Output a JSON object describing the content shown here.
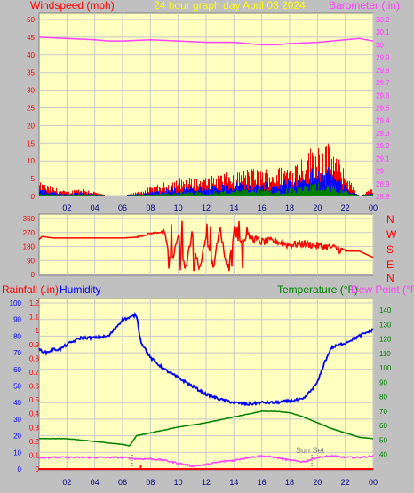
{
  "header": {
    "title": "24 hour graph day   April 03 2024",
    "left_label": "Windspeed (mph)",
    "right_label": "Barometer (.in)"
  },
  "compass": {
    "letters": [
      "N",
      "W",
      "S",
      "E",
      "N"
    ]
  },
  "bottom_header": {
    "rainfall": "Rainfall (.in)",
    "humidity": "Humidity",
    "temperature": "Temperature (°F)",
    "dewpoint": "Dew Point (°F)"
  },
  "annotation": "Sun Set",
  "colors": {
    "background": "#c0c0c0",
    "plot": "#ffffc0",
    "windspeed": "#ff0000",
    "gust_avg": "#0000ff",
    "wind_low": "#008000",
    "barometer": "#ff40ff",
    "humidity": "#0000ff",
    "temperature": "#008000",
    "dewpoint": "#ff40ff",
    "rain": "#ff0000",
    "title": "#ffff00"
  },
  "chart_data": [
    {
      "type": "line",
      "name": "wind-barometer",
      "x_ticks": [
        "02",
        "04",
        "06",
        "08",
        "10",
        "12",
        "14",
        "16",
        "18",
        "20",
        "22",
        "00"
      ],
      "y_left_ticks": [
        "0",
        "5",
        "10",
        "15",
        "20",
        "25",
        "30",
        "35",
        "40",
        "45",
        "50"
      ],
      "y_left_range": [
        0,
        50
      ],
      "y_right_ticks": [
        "28.8",
        "28.9",
        "29",
        "29.1",
        "29.2",
        "29.3",
        "29.4",
        "29.5",
        "29.6",
        "29.7",
        "29.8",
        "29.9",
        "30",
        "30.1",
        "30.2"
      ],
      "y_right_range": [
        28.8,
        30.2
      ],
      "barometer": {
        "x": [
          0,
          2,
          4,
          5,
          6,
          8,
          10,
          12,
          14,
          15,
          16,
          17,
          18,
          20,
          22,
          23,
          24
        ],
        "y": [
          30.06,
          30.05,
          30.04,
          30.03,
          30.03,
          30.04,
          30.03,
          30.02,
          30.02,
          30.01,
          30.0,
          30.0,
          30.01,
          30.02,
          30.04,
          30.05,
          30.03
        ]
      },
      "windspeed_envelope": {
        "x": [
          0,
          1,
          2,
          3,
          4,
          5,
          6,
          7,
          8,
          9,
          10,
          11,
          12,
          13,
          14,
          15,
          16,
          17,
          18,
          19,
          20,
          21,
          22,
          23,
          24
        ],
        "y": [
          3,
          2,
          1,
          2,
          1,
          0,
          0,
          1,
          2,
          3,
          4,
          4,
          4,
          5,
          5,
          6,
          6,
          6,
          7,
          9,
          12,
          11,
          5,
          0,
          2
        ]
      }
    },
    {
      "type": "line",
      "name": "wind-direction",
      "y_ticks": [
        "0",
        "90",
        "180",
        "270",
        "360"
      ],
      "y_range": [
        0,
        360
      ],
      "x": [
        0,
        0.2,
        1,
        3,
        5,
        6,
        7,
        8,
        9,
        9.5,
        10,
        10.5,
        11,
        11.5,
        12,
        12.5,
        13,
        13.5,
        14,
        14.5,
        15,
        16,
        17,
        18,
        19,
        20,
        21,
        22,
        23,
        24
      ],
      "y": [
        225,
        245,
        235,
        235,
        235,
        235,
        240,
        265,
        275,
        70,
        255,
        30,
        270,
        20,
        250,
        40,
        300,
        40,
        260,
        210,
        245,
        210,
        215,
        190,
        200,
        185,
        175,
        150,
        150,
        110
      ]
    },
    {
      "type": "line",
      "name": "humidity-temperature",
      "y_left_ticks": [
        "0",
        "10",
        "20",
        "30",
        "40",
        "50",
        "60",
        "70",
        "80",
        "90",
        "100"
      ],
      "y_left_range": [
        0,
        100
      ],
      "y_rain_ticks": [
        "0",
        "0.1",
        "0.2",
        "0.3",
        "0.4",
        "0.5",
        "0.6",
        "0.7",
        "0.8",
        "0.9",
        "1",
        "1.1",
        "1.2"
      ],
      "y_rain_range": [
        0,
        1.2
      ],
      "y_right_ticks": [
        "40",
        "50",
        "60",
        "70",
        "80",
        "90",
        "100",
        "110",
        "120",
        "130",
        "140"
      ],
      "y_right_range": [
        30,
        145
      ],
      "humidity": {
        "x": [
          0,
          0.5,
          1,
          1.5,
          2,
          3,
          4,
          5,
          6,
          6.5,
          7,
          7.3,
          8,
          9,
          10,
          11,
          12,
          13,
          14,
          15,
          16,
          17,
          18,
          19,
          20,
          20.5,
          21,
          22,
          23,
          24
        ],
        "y": [
          72,
          70,
          72,
          72,
          75,
          79,
          79,
          80,
          90,
          91,
          93,
          77,
          67,
          60,
          55,
          50,
          45,
          42,
          40,
          39,
          40,
          40,
          41,
          42,
          52,
          64,
          73,
          76,
          80,
          84
        ]
      },
      "temperature": {
        "x": [
          0,
          1,
          2,
          3,
          4,
          5,
          6,
          6.5,
          7,
          7.5,
          8,
          9,
          10,
          12,
          14,
          15,
          16,
          17,
          18,
          19,
          20,
          21,
          22,
          23,
          24
        ],
        "y": [
          51,
          51,
          51,
          50,
          49,
          48,
          47,
          46,
          53,
          54,
          55,
          57,
          59,
          62,
          66,
          68,
          70,
          70,
          69,
          66,
          62,
          58,
          55,
          52,
          51
        ]
      },
      "dewpoint": {
        "x": [
          0,
          2,
          4,
          6,
          7,
          8,
          9,
          10,
          11,
          12,
          13,
          14,
          15,
          16,
          17,
          18,
          19,
          20,
          21,
          22,
          23,
          24
        ],
        "y": [
          38,
          38,
          38,
          38,
          37,
          37,
          36,
          34,
          32,
          33,
          35,
          36,
          38,
          39,
          38,
          36,
          35,
          38,
          39,
          38,
          38,
          39
        ]
      },
      "rainfall": {
        "x": [
          0,
          24
        ],
        "y": [
          0,
          0
        ]
      },
      "markers_hours": [
        6.7,
        19.6
      ]
    }
  ]
}
